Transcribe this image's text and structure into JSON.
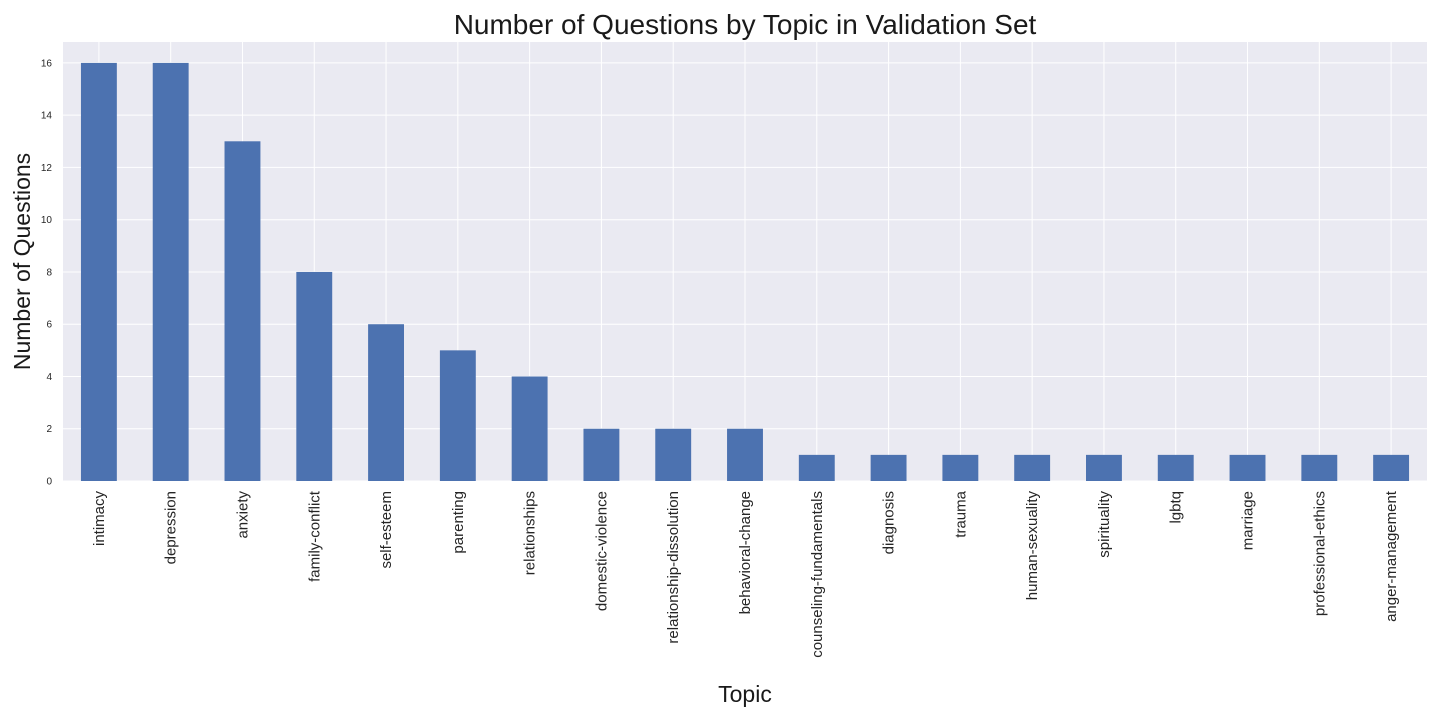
{
  "chart_data": {
    "type": "bar",
    "title": "Number of Questions by Topic in Validation Set",
    "xlabel": "Topic",
    "ylabel": "Number of Questions",
    "categories": [
      "intimacy",
      "depression",
      "anxiety",
      "family-conflict",
      "self-esteem",
      "parenting",
      "relationships",
      "domestic-violence",
      "relationship-dissolution",
      "behavioral-change",
      "counseling-fundamentals",
      "diagnosis",
      "trauma",
      "human-sexuality",
      "spirituality",
      "lgbtq",
      "marriage",
      "professional-ethics",
      "anger-management"
    ],
    "values": [
      16,
      16,
      13,
      8,
      6,
      5,
      4,
      2,
      2,
      2,
      1,
      1,
      1,
      1,
      1,
      1,
      1,
      1,
      1
    ],
    "ylim": [
      0,
      16.8
    ],
    "yticks": [
      0,
      2,
      4,
      6,
      8,
      10,
      12,
      14,
      16
    ],
    "grid": true,
    "bar_color": "#4c72b0",
    "plot_background": "#eaeaf2",
    "grid_color": "#ffffff"
  }
}
